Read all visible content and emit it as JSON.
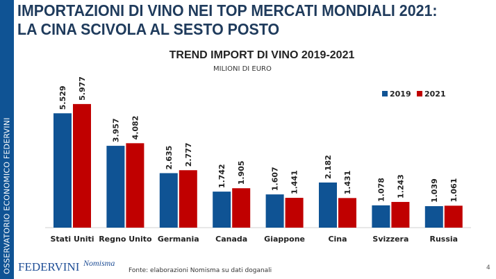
{
  "sidebar": {
    "text": "OSSERVATORIO ECONOMICO  FEDERVINI"
  },
  "title": {
    "line1": "IMPORTAZIONI DI VINO NEI TOP MERCATI MONDIALI 2021:",
    "line2": "LA CINA SCIVOLA AL SESTO POSTO"
  },
  "footer": {
    "source": "Fonte: elaborazioni Nomisma su dati doganali",
    "page": "4",
    "logo1": "FEDERVINI",
    "logo2": "Nomisma"
  },
  "chart_data": {
    "type": "bar",
    "title": "TREND IMPORT DI VINO 2019-2021",
    "subtitle": "MILIONI DI EURO",
    "categories": [
      "Stati Uniti",
      "Regno Unito",
      "Germania",
      "Canada",
      "Giappone",
      "Cina",
      "Svizzera",
      "Russia"
    ],
    "series": [
      {
        "name": "2019",
        "color": "#0f5394",
        "values": [
          5.529,
          3.957,
          2.635,
          1.742,
          1.607,
          2.182,
          1.078,
          1.039
        ],
        "labels": [
          "5.529",
          "3.957",
          "2.635",
          "1.742",
          "1.607",
          "2.182",
          "1.078",
          "1.039"
        ]
      },
      {
        "name": "2021",
        "color": "#c00000",
        "values": [
          5.977,
          4.082,
          2.777,
          1.905,
          1.441,
          1.431,
          1.243,
          1.061
        ],
        "labels": [
          "5.977",
          "4.082",
          "2.777",
          "1.905",
          "1.441",
          "1.431",
          "1.243",
          "1.061"
        ]
      }
    ],
    "ylim": [
      0,
      6
    ],
    "grid": false,
    "legend": "top-right"
  }
}
